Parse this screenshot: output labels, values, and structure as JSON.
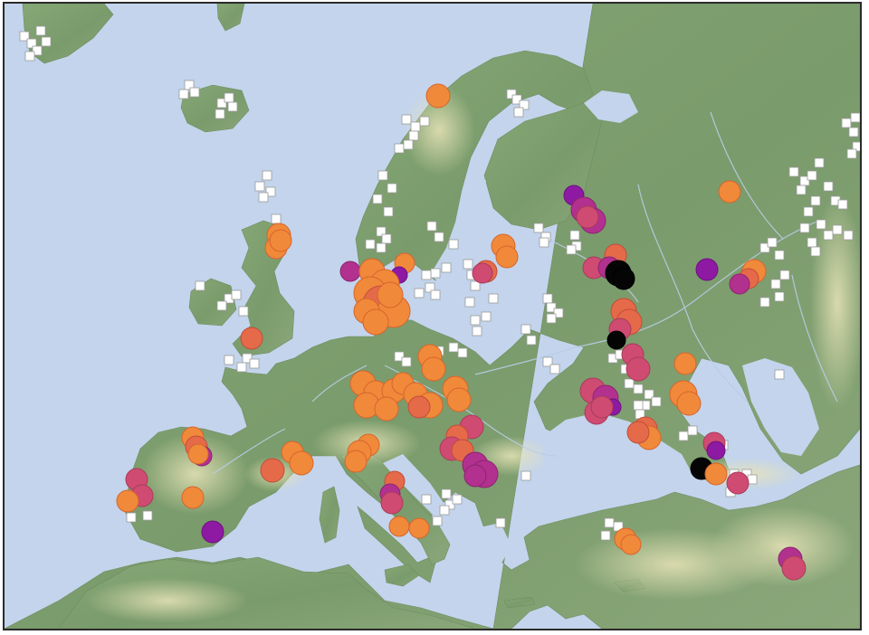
{
  "map": {
    "region": "Europe",
    "colors": {
      "sea": "#c3d4ec",
      "land_low": "#7d9e6e",
      "land_high": "#e6e2b4",
      "river": "#b9cde6",
      "border": "#2b2b2b"
    },
    "marker_styles": {
      "orange": {
        "fill": "#f0893a",
        "stroke": "#d7652d"
      },
      "coral": {
        "fill": "#e46a4a",
        "stroke": "#c44d38"
      },
      "rose": {
        "fill": "#cf4b72",
        "stroke": "#a83c5c"
      },
      "magenta": {
        "fill": "#b2318e",
        "stroke": "#8c2470"
      },
      "purple": {
        "fill": "#8e19a2",
        "stroke": "#6c1380"
      },
      "black": {
        "fill": "#050505",
        "stroke": "#000000"
      },
      "square": {
        "fill": "#ffffff",
        "stroke": "#9a9a9a"
      }
    },
    "visible_text": []
  }
}
